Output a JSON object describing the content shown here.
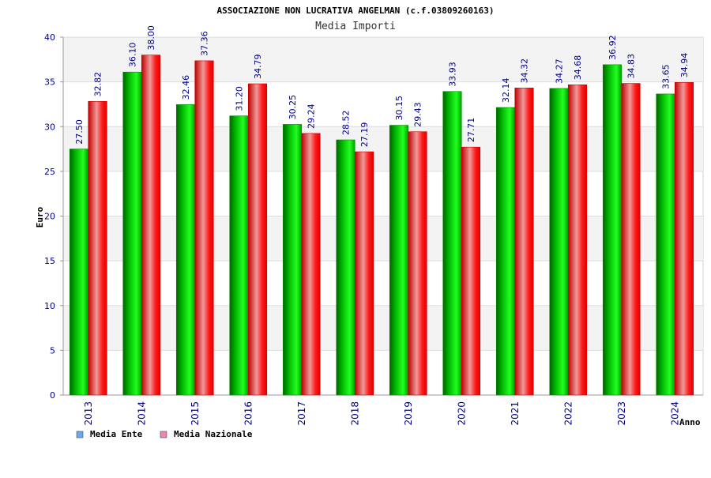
{
  "chart_data": {
    "type": "bar",
    "title": "ASSOCIAZIONE NON LUCRATIVA ANGELMAN (c.f.03809260163)",
    "subtitle": "Media Importi",
    "xlabel": "Anno",
    "ylabel": "Euro",
    "ylim": [
      0,
      40
    ],
    "yticks": [
      0,
      5,
      10,
      15,
      20,
      25,
      30,
      35,
      40
    ],
    "categories": [
      "2013",
      "2014",
      "2015",
      "2016",
      "2017",
      "2018",
      "2019",
      "2020",
      "2021",
      "2022",
      "2023",
      "2024"
    ],
    "series": [
      {
        "name": "Media Ente",
        "values": [
          27.5,
          36.1,
          32.46,
          31.2,
          30.25,
          28.52,
          30.15,
          33.93,
          32.14,
          34.27,
          36.92,
          33.65
        ],
        "labels": [
          "27.50",
          "36.10",
          "32.46",
          "31.20",
          "30.25",
          "28.52",
          "30.15",
          "33.93",
          "32.14",
          "34.27",
          "36.92",
          "33.65"
        ]
      },
      {
        "name": "Media Nazionale",
        "values": [
          32.82,
          38.0,
          37.36,
          34.79,
          29.24,
          27.19,
          29.43,
          27.71,
          34.32,
          34.68,
          34.83,
          34.94
        ],
        "labels": [
          "32.82",
          "38.00",
          "37.36",
          "34.79",
          "29.24",
          "27.19",
          "29.43",
          "27.71",
          "34.32",
          "34.68",
          "34.83",
          "34.94"
        ]
      }
    ],
    "legend": {
      "placement": "bottom-left",
      "items": [
        {
          "name": "Media Ente",
          "swatch_color": "#6aa9f0"
        },
        {
          "name": "Media Nazionale",
          "swatch_color": "#e787b4"
        }
      ]
    },
    "grid": true,
    "colors": {
      "series_1": "#00b400",
      "series_2": "#f00000",
      "band": "#f3f3f3",
      "tick_text": "#00008b"
    }
  }
}
